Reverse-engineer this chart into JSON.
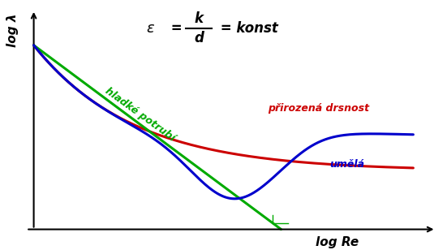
{
  "background_color": "#ffffff",
  "xlabel": "log Re",
  "ylabel": "log λ",
  "label_green": "hladké potrubí",
  "label_red": "přirozená drsnost",
  "label_blue": "umělá",
  "color_green": "#00aa00",
  "color_red": "#cc0000",
  "color_blue": "#0000cc",
  "color_axis": "#000000",
  "lw": 2.2
}
